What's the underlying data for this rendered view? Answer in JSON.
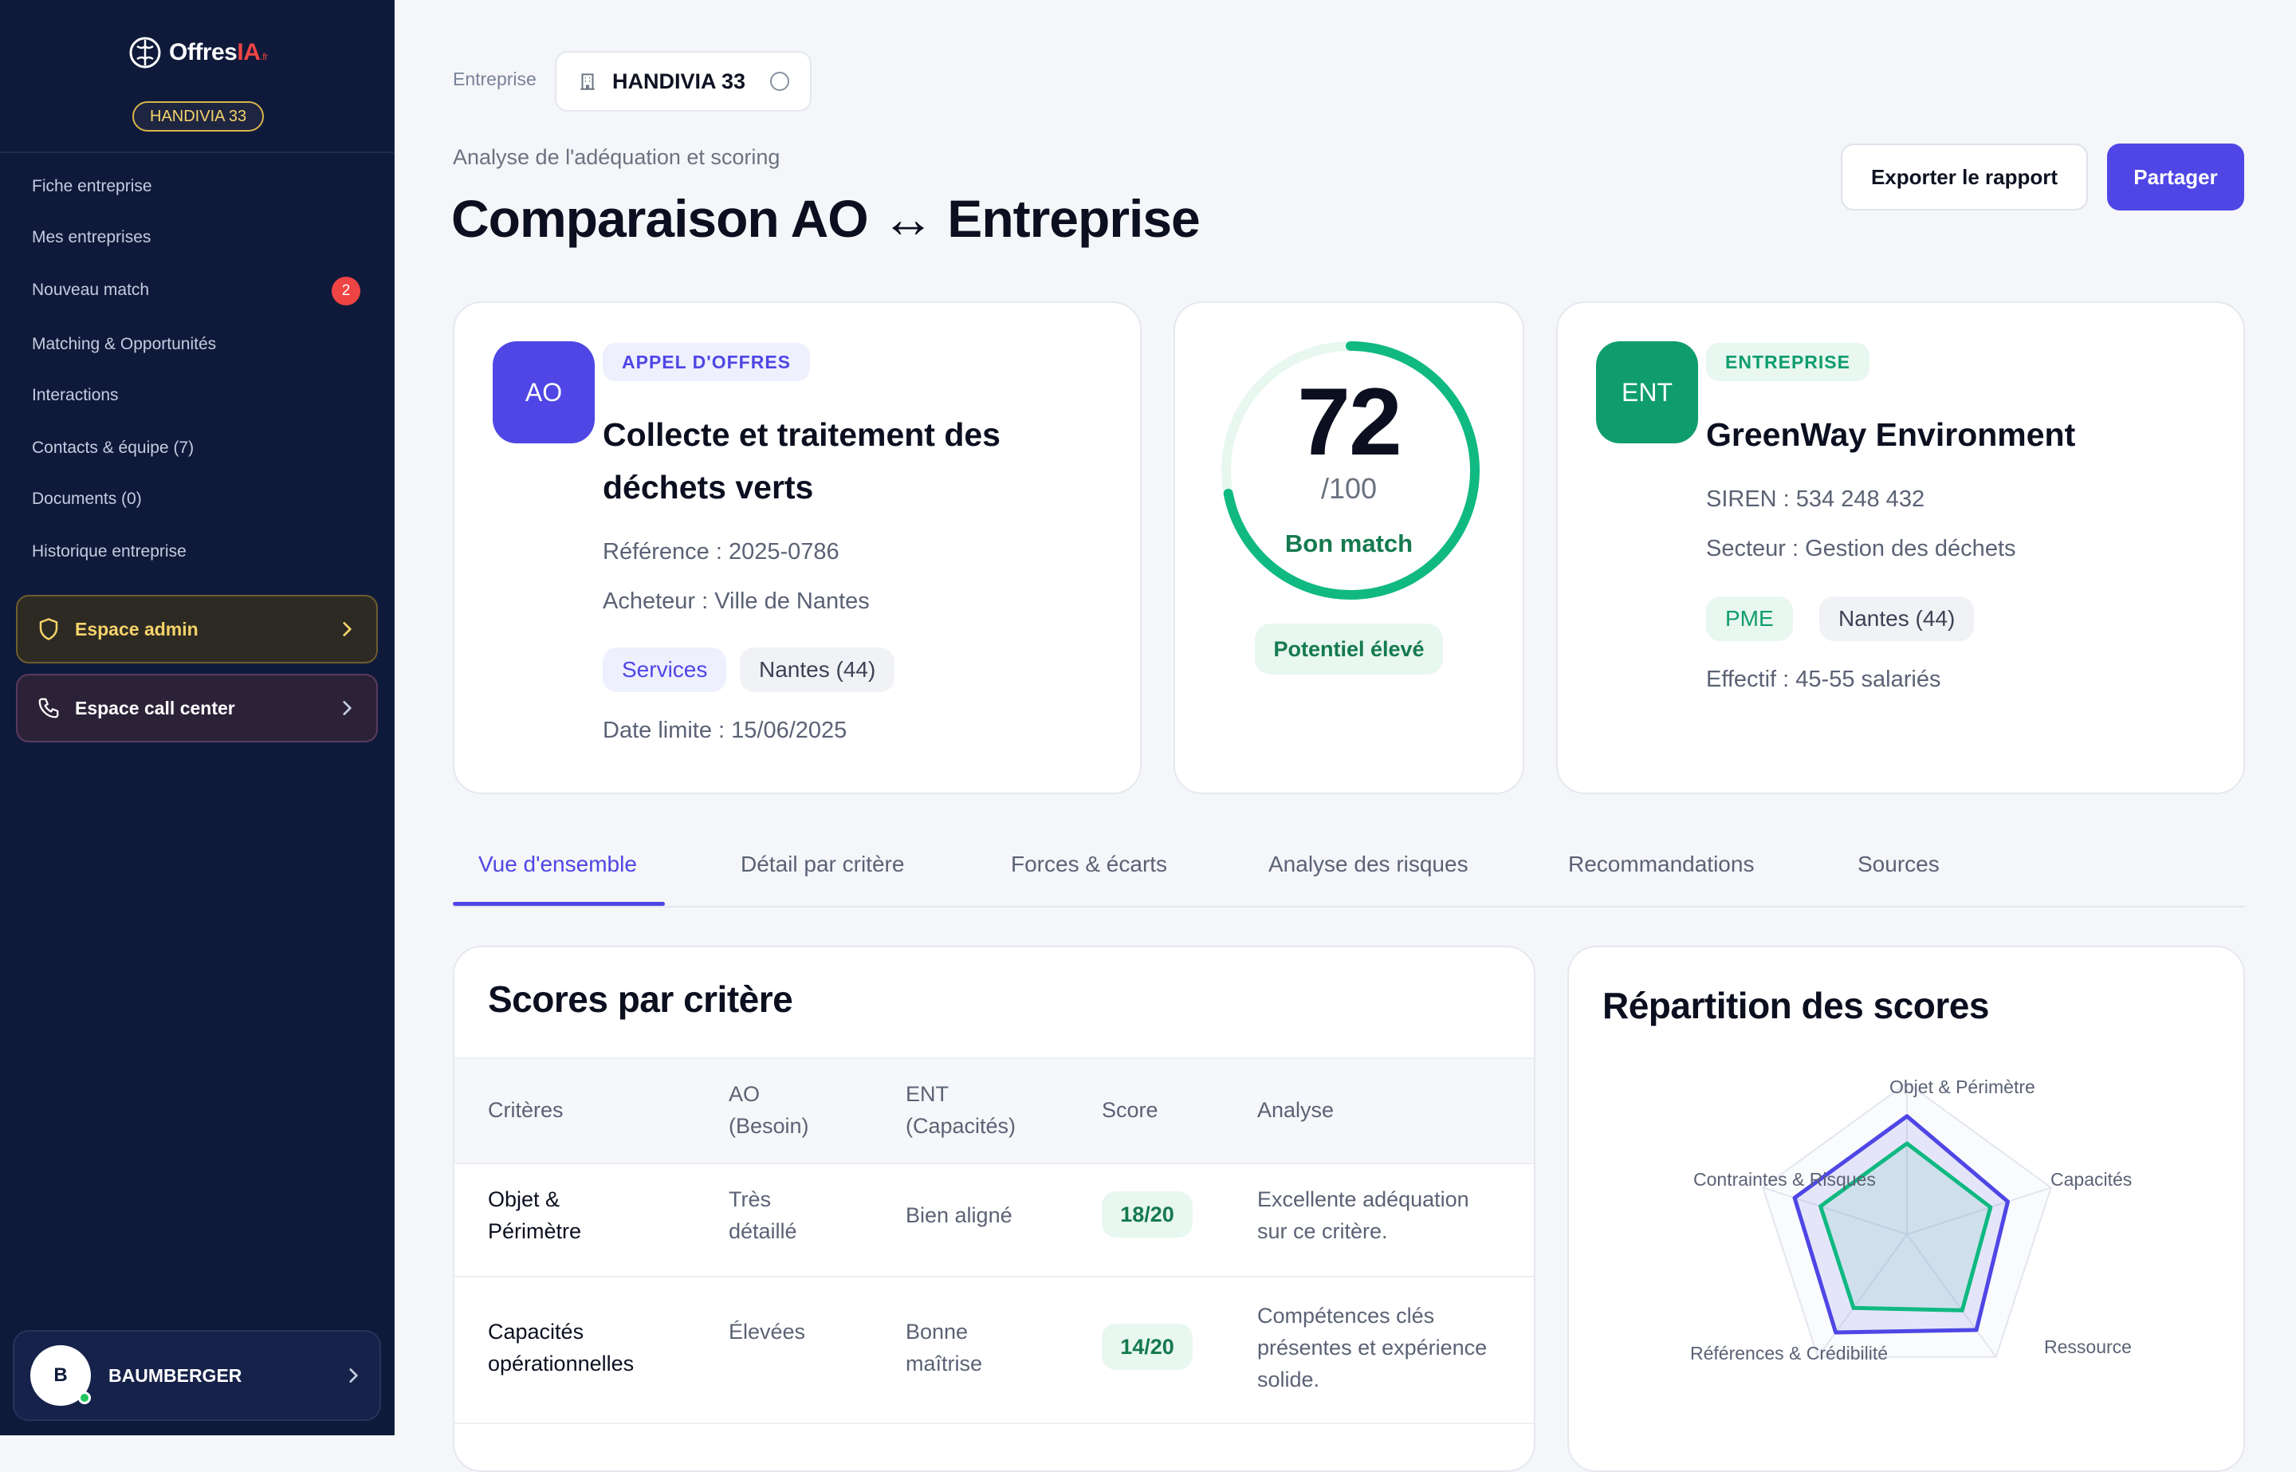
{
  "sidebar": {
    "logo": {
      "name": "Offres",
      "accent": "IA",
      "suffix": ".fr"
    },
    "enterprise_pill": "HANDIVIA 33",
    "nav": [
      {
        "label": "Fiche entreprise"
      },
      {
        "label": "Mes entreprises"
      },
      {
        "label": "Nouveau match",
        "badge": "2"
      },
      {
        "label": "Matching & Opportunités"
      },
      {
        "label": "Interactions"
      },
      {
        "label": "Contacts & équipe (7)"
      },
      {
        "label": "Documents (0)"
      },
      {
        "label": "Historique entreprise"
      }
    ],
    "admin_space": "Espace admin",
    "call_center_space": "Espace call center",
    "user": {
      "initial": "B",
      "name": "BAUMBERGER"
    }
  },
  "header": {
    "crumb_label": "Entreprise",
    "crumb_value": "HANDIVIA 33",
    "subtitle": "Analyse de l'adéquation et scoring",
    "title": "Comparaison AO ↔ Entreprise",
    "export_label": "Exporter le rapport",
    "share_label": "Partager"
  },
  "ao_card": {
    "badge": "AO",
    "type": "APPEL D'OFFRES",
    "title_line1": "Collecte et traitement des",
    "title_line2": "déchets verts",
    "reference": "Référence : 2025-0786",
    "buyer": "Acheteur : Ville de Nantes",
    "chips": [
      "Services",
      "Nantes (44)"
    ],
    "deadline": "Date limite : 15/06/2025"
  },
  "score_card": {
    "score": "72",
    "max": "/100",
    "score_value": 72,
    "verdict": "Bon match",
    "potential": "Potentiel élevé"
  },
  "ent_card": {
    "badge": "ENT",
    "type": "ENTREPRISE",
    "title": "GreenWay Environment",
    "siren": "SIREN : 534 248 432",
    "sector": "Secteur : Gestion des déchets",
    "chips": [
      "PME",
      "Nantes (44)"
    ],
    "staff": "Effectif : 45-55 salariés"
  },
  "tabs": [
    {
      "label": "Vue d'ensemble",
      "active": true
    },
    {
      "label": "Détail par critère"
    },
    {
      "label": "Forces & écarts"
    },
    {
      "label": "Analyse des risques"
    },
    {
      "label": "Recommandations"
    },
    {
      "label": "Sources"
    }
  ],
  "scores_table": {
    "title": "Scores par critère",
    "headers": {
      "criteria": "Critères",
      "ao_line1": "AO",
      "ao_line2": "(Besoin)",
      "ent_line1": "ENT",
      "ent_line2": "(Capacités)",
      "score": "Score",
      "analysis": "Analyse"
    },
    "rows": [
      {
        "criteria": [
          "Objet &",
          "Périmètre"
        ],
        "ao": [
          "Très",
          "détaillé"
        ],
        "ent": [
          "Bien aligné"
        ],
        "score": "18/20",
        "analysis": [
          "Excellente adéquation",
          "sur ce critère."
        ]
      },
      {
        "criteria": [
          "Capacités",
          "opérationnelles"
        ],
        "ao": [
          "Élevées"
        ],
        "ent": [
          "Bonne",
          "maîtrise"
        ],
        "score": "14/20",
        "analysis": [
          "Compétences clés",
          "présentes et expérience",
          "solide."
        ]
      }
    ]
  },
  "radar": {
    "title": "Répartition des scores",
    "axes": [
      "Objet & Périmètre",
      "Capacités",
      "Ressource",
      "Références & Crédibilité",
      "Contraintes & Risques"
    ],
    "colors": {
      "ao": "#4f46e5",
      "ent": "#10b981"
    }
  },
  "colors": {
    "accent": "#4f46e5",
    "success": "#10b981",
    "sidebar": "#0f1a3a",
    "danger": "#ef4444"
  }
}
